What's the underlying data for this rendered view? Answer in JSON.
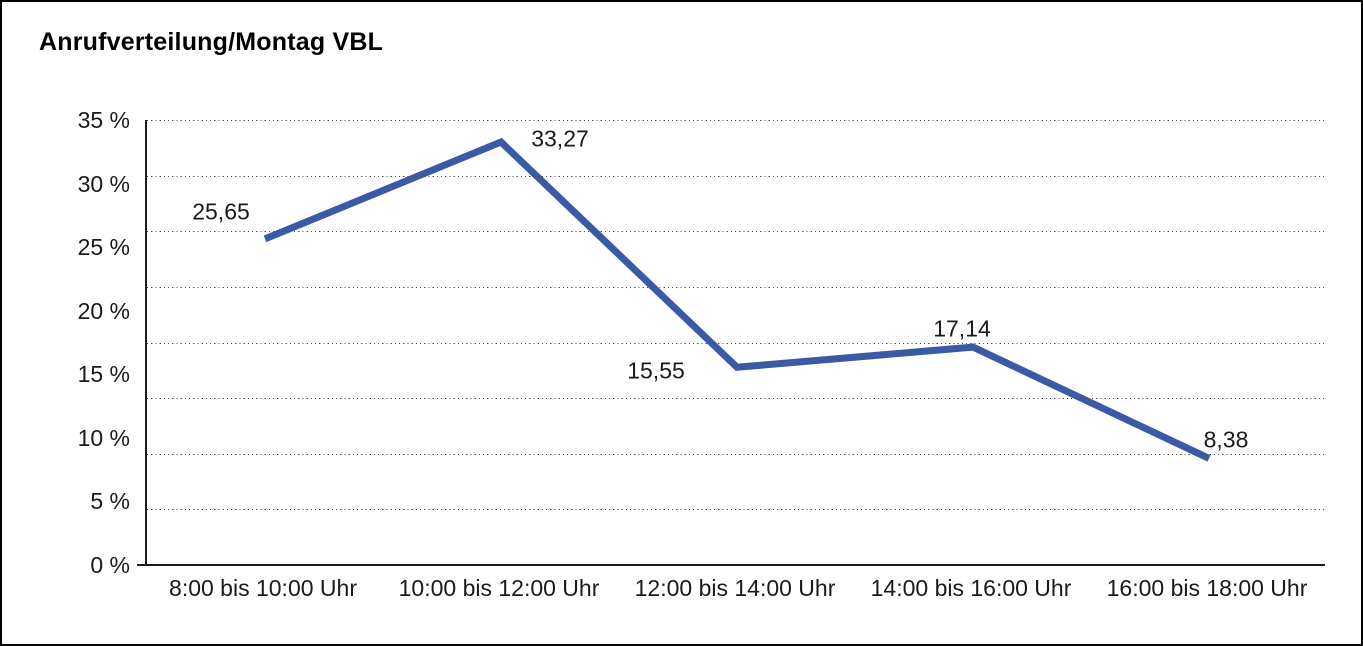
{
  "title": "Anrufverteilung/Montag VBL",
  "chart_data": {
    "type": "line",
    "title": "Anrufverteilung/Montag VBL",
    "categories": [
      "8:00 bis 10:00 Uhr",
      "10:00 bis 12:00 Uhr",
      "12:00 bis 14:00 Uhr",
      "14:00 bis 16:00 Uhr",
      "16:00 bis 18:00 Uhr"
    ],
    "values": [
      25.65,
      33.27,
      15.55,
      17.14,
      8.38
    ],
    "point_labels": [
      "25,65",
      "33,27",
      "15,55",
      "17,14",
      "8,38"
    ],
    "xlabel": "",
    "ylabel": "",
    "ylim": [
      0,
      35
    ],
    "yticks": [
      "35 %",
      "30 %",
      "25 %",
      "20 %",
      "15 %",
      "10 %",
      "5 %",
      "0 %"
    ],
    "ytick_values": [
      35,
      30,
      25,
      20,
      15,
      10,
      5,
      0
    ],
    "grid": {
      "horizontal": true,
      "style": "dotted",
      "divisions": 8
    },
    "legend": "none",
    "line_color": "#3B5AA6",
    "axis_color": "#1a1a1a",
    "text_color": "#1a1a1a"
  }
}
